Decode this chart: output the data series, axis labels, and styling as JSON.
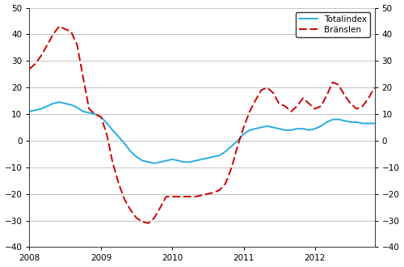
{
  "title": "",
  "xlabel": "",
  "ylabel_left": "",
  "ylabel_right": "",
  "ylim": [
    -40,
    50
  ],
  "yticks": [
    -40,
    -30,
    -20,
    -10,
    0,
    10,
    20,
    30,
    40,
    50
  ],
  "n_months": 59,
  "legend_labels": [
    "Totalindex",
    "Bränslen"
  ],
  "line1_color": "#29ABE2",
  "line2_color": "#CC0000",
  "background_color": "#ffffff",
  "grid_color": "#bbbbbb",
  "totalindex": [
    11.0,
    11.5,
    12.0,
    13.0,
    14.0,
    14.5,
    14.0,
    13.5,
    12.5,
    11.0,
    10.5,
    10.0,
    9.0,
    6.5,
    4.0,
    1.5,
    -1.0,
    -4.0,
    -6.0,
    -7.5,
    -8.0,
    -8.5,
    -8.0,
    -7.5,
    -7.0,
    -7.5,
    -8.0,
    -8.0,
    -7.5,
    -7.0,
    -6.5,
    -6.0,
    -5.5,
    -4.0,
    -2.0,
    0.0,
    2.5,
    4.0,
    4.5,
    5.0,
    5.5,
    5.0,
    4.5,
    4.0,
    4.0,
    4.5,
    4.5,
    4.0,
    4.5,
    5.5,
    7.0,
    8.0,
    8.0,
    7.5,
    7.0,
    7.0,
    6.5,
    6.5,
    6.5
  ],
  "branslen": [
    27.0,
    29.0,
    32.0,
    36.0,
    40.0,
    43.0,
    42.0,
    41.0,
    36.0,
    24.0,
    12.0,
    10.0,
    9.0,
    2.0,
    -8.0,
    -16.0,
    -22.0,
    -26.0,
    -29.0,
    -30.5,
    -31.0,
    -29.0,
    -25.0,
    -21.0,
    -21.0,
    -21.0,
    -21.0,
    -21.0,
    -21.0,
    -20.5,
    -20.0,
    -19.5,
    -18.5,
    -16.0,
    -10.0,
    -2.0,
    5.0,
    11.0,
    15.0,
    19.0,
    20.0,
    18.0,
    14.0,
    13.0,
    11.0,
    13.0,
    16.0,
    14.0,
    12.0,
    13.0,
    17.0,
    22.0,
    21.0,
    17.0,
    14.0,
    12.0,
    13.0,
    16.0,
    20.0
  ]
}
